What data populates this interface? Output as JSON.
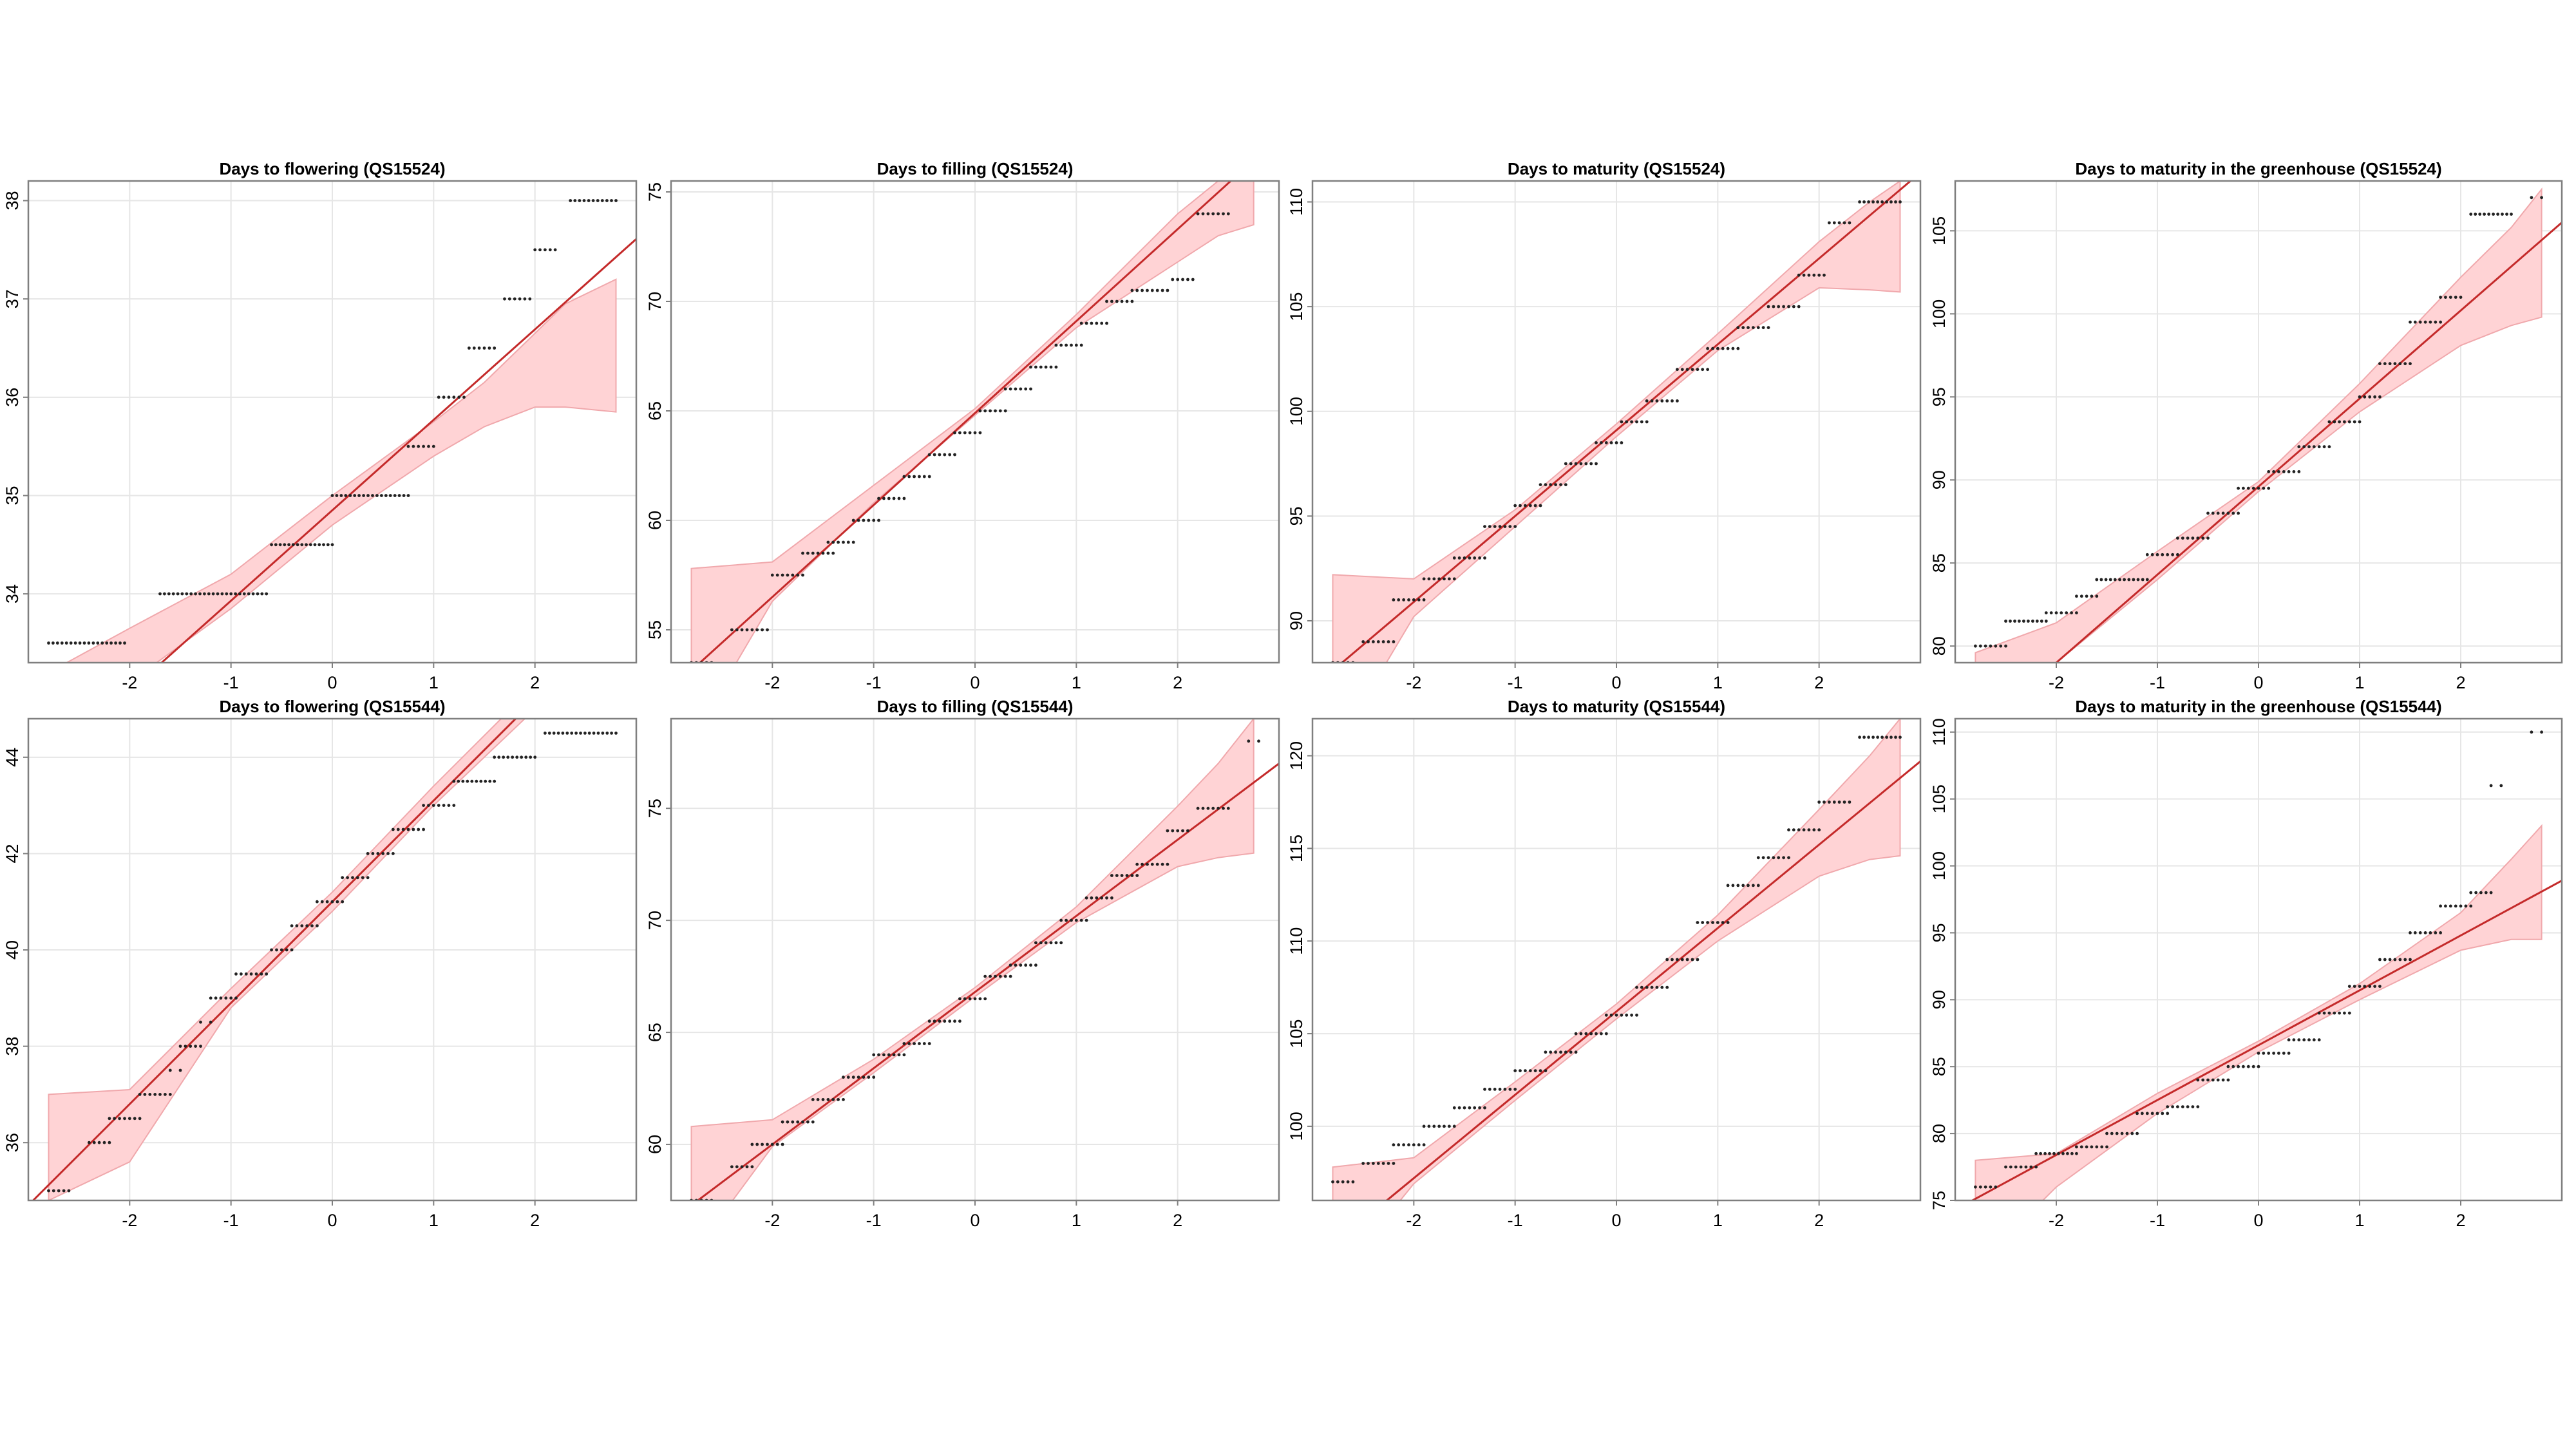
{
  "colors": {
    "band": "#ffd3d5",
    "band_edge": "#f0a8ac",
    "reference_line": "#c42a2a",
    "points": "#222222",
    "frame": "#7f7f7f",
    "grid": "#e6e6e6"
  },
  "chart_data": [
    {
      "type": "scatter",
      "title": "Days to flowering (QS15524)",
      "xlabel": "",
      "ylabel": "",
      "xlim": [
        -3,
        3
      ],
      "ylim": [
        33.3,
        38.2
      ],
      "xticks": [
        -2,
        -1,
        0,
        1,
        2
      ],
      "yticks": [
        34,
        35,
        36,
        37,
        38
      ],
      "grid": true,
      "reference_line": {
        "slope": 0.92,
        "intercept": 34.85
      },
      "steps": [
        [
          -2.8,
          -2.05,
          33.5
        ],
        [
          -1.7,
          -0.65,
          34
        ],
        [
          -0.6,
          0.0,
          34.5
        ],
        [
          0.0,
          0.75,
          35
        ],
        [
          0.75,
          1.0,
          35.5
        ],
        [
          1.05,
          1.3,
          36
        ],
        [
          1.35,
          1.6,
          36.5
        ],
        [
          1.7,
          1.95,
          37
        ],
        [
          2.0,
          2.2,
          37.5
        ],
        [
          2.35,
          2.8,
          38
        ]
      ],
      "band": {
        "x": [
          -2.8,
          -2.0,
          -1.0,
          0.0,
          1.0,
          1.5,
          2.0,
          2.3,
          2.8
        ],
        "lower": [
          32.3,
          33.1,
          33.85,
          34.7,
          35.4,
          35.7,
          35.9,
          35.9,
          35.85
        ],
        "upper": [
          33.2,
          33.65,
          34.2,
          35.0,
          35.75,
          36.15,
          36.65,
          36.95,
          37.2
        ]
      }
    },
    {
      "type": "scatter",
      "title": "Days to filling (QS15524)",
      "xlabel": "",
      "ylabel": "",
      "xlim": [
        -3,
        3
      ],
      "ylim": [
        53.5,
        75.5
      ],
      "xticks": [
        -2,
        -1,
        0,
        1,
        2
      ],
      "yticks": [
        55,
        60,
        65,
        70,
        75
      ],
      "grid": true,
      "reference_line": {
        "slope": 4.2,
        "intercept": 64.9
      },
      "steps": [
        [
          -2.8,
          -2.6,
          53.5
        ],
        [
          -2.4,
          -2.05,
          55
        ],
        [
          -2.0,
          -1.7,
          57.5
        ],
        [
          -1.7,
          -1.4,
          58.5
        ],
        [
          -1.45,
          -1.2,
          59
        ],
        [
          -1.2,
          -0.95,
          60
        ],
        [
          -0.95,
          -0.7,
          61
        ],
        [
          -0.7,
          -0.45,
          62
        ],
        [
          -0.45,
          -0.2,
          63
        ],
        [
          -0.2,
          0.05,
          64
        ],
        [
          0.05,
          0.3,
          65
        ],
        [
          0.3,
          0.55,
          66
        ],
        [
          0.55,
          0.8,
          67
        ],
        [
          0.8,
          1.05,
          68
        ],
        [
          1.05,
          1.3,
          69
        ],
        [
          1.3,
          1.55,
          70
        ],
        [
          1.55,
          1.9,
          70.5
        ],
        [
          1.95,
          2.15,
          71
        ],
        [
          2.2,
          2.5,
          74
        ]
      ],
      "band": {
        "x": [
          -2.8,
          -2.0,
          -1.0,
          0.0,
          1.0,
          2.0,
          2.4,
          2.75
        ],
        "lower": [
          50.0,
          56.3,
          60.8,
          64.8,
          68.8,
          71.8,
          73.0,
          73.5
        ],
        "upper": [
          57.8,
          58.1,
          61.6,
          65.1,
          69.4,
          74.0,
          75.5,
          76.0
        ]
      }
    },
    {
      "type": "scatter",
      "title": "Days to maturity (QS15524)",
      "xlabel": "",
      "ylabel": "",
      "xlim": [
        -3,
        3
      ],
      "ylim": [
        88,
        111
      ],
      "xticks": [
        -2,
        -1,
        0,
        1,
        2
      ],
      "yticks": [
        90,
        95,
        100,
        105,
        110
      ],
      "grid": true,
      "reference_line": {
        "slope": 4.1,
        "intercept": 99.1
      },
      "steps": [
        [
          -2.8,
          -2.6,
          88
        ],
        [
          -2.5,
          -2.2,
          89
        ],
        [
          -2.2,
          -1.9,
          91
        ],
        [
          -1.9,
          -1.6,
          92
        ],
        [
          -1.6,
          -1.3,
          93
        ],
        [
          -1.3,
          -1.0,
          94.5
        ],
        [
          -1.0,
          -0.75,
          95.5
        ],
        [
          -0.75,
          -0.5,
          96.5
        ],
        [
          -0.5,
          -0.2,
          97.5
        ],
        [
          -0.2,
          0.05,
          98.5
        ],
        [
          0.05,
          0.3,
          99.5
        ],
        [
          0.3,
          0.6,
          100.5
        ],
        [
          0.6,
          0.9,
          102
        ],
        [
          0.9,
          1.2,
          103
        ],
        [
          1.2,
          1.5,
          104
        ],
        [
          1.5,
          1.8,
          105
        ],
        [
          1.8,
          2.05,
          106.5
        ],
        [
          2.1,
          2.3,
          109
        ],
        [
          2.4,
          2.8,
          110
        ]
      ],
      "band": {
        "x": [
          -2.8,
          -2.0,
          -1.0,
          0.0,
          1.0,
          2.0,
          2.5,
          2.8
        ],
        "lower": [
          83.7,
          90.2,
          94.5,
          98.8,
          102.9,
          105.9,
          105.8,
          105.7
        ],
        "upper": [
          92.2,
          92.0,
          95.3,
          99.4,
          103.7,
          108.1,
          110.0,
          111.0
        ]
      }
    },
    {
      "type": "scatter",
      "title": "Days to maturity in the greenhouse (QS15524)",
      "xlabel": "",
      "ylabel": "",
      "xlim": [
        -3,
        3
      ],
      "ylim": [
        79,
        108
      ],
      "xticks": [
        -2,
        -1,
        0,
        1,
        2
      ],
      "yticks": [
        80,
        85,
        90,
        95,
        100,
        105
      ],
      "grid": true,
      "reference_line": {
        "slope": 5.3,
        "intercept": 89.6
      },
      "steps": [
        [
          -2.8,
          -2.5,
          80
        ],
        [
          -2.5,
          -2.1,
          81.5
        ],
        [
          -2.1,
          -1.8,
          82
        ],
        [
          -1.8,
          -1.6,
          83
        ],
        [
          -1.6,
          -1.1,
          84
        ],
        [
          -1.1,
          -0.8,
          85.5
        ],
        [
          -0.8,
          -0.5,
          86.5
        ],
        [
          -0.5,
          -0.2,
          88
        ],
        [
          -0.2,
          0.1,
          89.5
        ],
        [
          0.1,
          0.4,
          90.5
        ],
        [
          0.4,
          0.7,
          92
        ],
        [
          0.7,
          1.0,
          93.5
        ],
        [
          1.0,
          1.2,
          95
        ],
        [
          1.2,
          1.5,
          97
        ],
        [
          1.5,
          1.8,
          99.5
        ],
        [
          1.8,
          2.0,
          101
        ],
        [
          2.1,
          2.5,
          106
        ],
        [
          2.7,
          2.8,
          107
        ]
      ],
      "band": {
        "x": [
          -2.8,
          -2.0,
          -1.0,
          0.0,
          1.0,
          2.0,
          2.5,
          2.8
        ],
        "lower": [
          74.1,
          79.0,
          84.0,
          89.3,
          94.1,
          98.1,
          99.3,
          99.8
        ],
        "upper": [
          79.6,
          81.4,
          85.7,
          89.9,
          95.8,
          102.2,
          105.2,
          107.5
        ]
      }
    },
    {
      "type": "scatter",
      "title": "Days to flowering (QS15544)",
      "xlabel": "",
      "ylabel": "",
      "xlim": [
        -3,
        3
      ],
      "ylim": [
        34.8,
        44.8
      ],
      "xticks": [
        -2,
        -1,
        0,
        1,
        2
      ],
      "yticks": [
        36,
        38,
        40,
        42,
        44
      ],
      "grid": true,
      "reference_line": {
        "slope": 2.1,
        "intercept": 41.0
      },
      "steps": [
        [
          -2.8,
          -2.6,
          35
        ],
        [
          -2.4,
          -2.2,
          36
        ],
        [
          -2.2,
          -1.9,
          36.5
        ],
        [
          -1.9,
          -1.6,
          37
        ],
        [
          -1.6,
          -1.5,
          37.5
        ],
        [
          -1.5,
          -1.3,
          38
        ],
        [
          -1.3,
          -1.2,
          38.5
        ],
        [
          -1.2,
          -0.95,
          39
        ],
        [
          -0.95,
          -0.65,
          39.5
        ],
        [
          -0.6,
          -0.4,
          40
        ],
        [
          -0.4,
          -0.15,
          40.5
        ],
        [
          -0.15,
          0.1,
          41
        ],
        [
          0.1,
          0.35,
          41.5
        ],
        [
          0.35,
          0.6,
          42
        ],
        [
          0.6,
          0.9,
          42.5
        ],
        [
          0.9,
          1.2,
          43
        ],
        [
          1.2,
          1.6,
          43.5
        ],
        [
          1.6,
          2.0,
          44
        ],
        [
          2.1,
          2.8,
          44.5
        ]
      ],
      "band": {
        "x": [
          -2.8,
          -2.0,
          -1.0,
          0.0,
          1.0,
          2.0,
          2.5,
          2.8
        ],
        "lower": [
          34.8,
          35.6,
          38.8,
          40.8,
          43.0,
          45.0,
          46.0,
          46.5
        ],
        "upper": [
          37.0,
          37.1,
          39.2,
          41.2,
          43.4,
          45.5,
          46.5,
          47.0
        ]
      }
    },
    {
      "type": "scatter",
      "title": "Days to filling (QS15544)",
      "xlabel": "",
      "ylabel": "",
      "xlim": [
        -3,
        3
      ],
      "ylim": [
        57.5,
        79
      ],
      "xticks": [
        -2,
        -1,
        0,
        1,
        2
      ],
      "yticks": [
        60,
        65,
        70,
        75
      ],
      "grid": true,
      "reference_line": {
        "slope": 3.4,
        "intercept": 66.8
      },
      "steps": [
        [
          -2.8,
          -2.6,
          57.5
        ],
        [
          -2.4,
          -2.2,
          59
        ],
        [
          -2.2,
          -1.9,
          60
        ],
        [
          -1.9,
          -1.6,
          61
        ],
        [
          -1.6,
          -1.3,
          62
        ],
        [
          -1.3,
          -1.0,
          63
        ],
        [
          -1.0,
          -0.7,
          64
        ],
        [
          -0.7,
          -0.45,
          64.5
        ],
        [
          -0.45,
          -0.15,
          65.5
        ],
        [
          -0.15,
          0.1,
          66.5
        ],
        [
          0.1,
          0.35,
          67.5
        ],
        [
          0.35,
          0.6,
          68
        ],
        [
          0.6,
          0.85,
          69
        ],
        [
          0.85,
          1.1,
          70
        ],
        [
          1.1,
          1.35,
          71
        ],
        [
          1.35,
          1.6,
          72
        ],
        [
          1.6,
          1.9,
          72.5
        ],
        [
          1.9,
          2.1,
          74
        ],
        [
          2.2,
          2.5,
          75
        ],
        [
          2.7,
          2.8,
          78
        ]
      ],
      "band": {
        "x": [
          -2.8,
          -2.0,
          -1.0,
          0.0,
          1.0,
          2.0,
          2.4,
          2.75
        ],
        "lower": [
          55.0,
          59.9,
          63.2,
          66.6,
          69.9,
          72.4,
          72.8,
          73.0
        ],
        "upper": [
          60.8,
          61.1,
          63.8,
          67.0,
          70.6,
          75.1,
          77.0,
          79.0
        ]
      }
    },
    {
      "type": "scatter",
      "title": "Days to maturity (QS15544)",
      "xlabel": "",
      "ylabel": "",
      "xlim": [
        -3,
        3
      ],
      "ylim": [
        96,
        122
      ],
      "xticks": [
        -2,
        -1,
        0,
        1,
        2
      ],
      "yticks": [
        100,
        105,
        110,
        115,
        120
      ],
      "grid": true,
      "reference_line": {
        "slope": 4.5,
        "intercept": 106.2
      },
      "steps": [
        [
          -2.8,
          -2.6,
          97
        ],
        [
          -2.5,
          -2.2,
          98
        ],
        [
          -2.2,
          -1.9,
          99
        ],
        [
          -1.9,
          -1.6,
          100
        ],
        [
          -1.6,
          -1.3,
          101
        ],
        [
          -1.3,
          -1.0,
          102
        ],
        [
          -1.0,
          -0.7,
          103
        ],
        [
          -0.7,
          -0.4,
          104
        ],
        [
          -0.4,
          -0.1,
          105
        ],
        [
          -0.1,
          0.2,
          106
        ],
        [
          0.2,
          0.5,
          107.5
        ],
        [
          0.5,
          0.8,
          109
        ],
        [
          0.8,
          1.1,
          111
        ],
        [
          1.1,
          1.4,
          113
        ],
        [
          1.4,
          1.7,
          114.5
        ],
        [
          1.7,
          2.0,
          116
        ],
        [
          2.0,
          2.3,
          117.5
        ],
        [
          2.4,
          2.8,
          121
        ]
      ],
      "band": {
        "x": [
          -2.8,
          -2.0,
          -1.0,
          0.0,
          1.0,
          2.0,
          2.5,
          2.8
        ],
        "lower": [
          91.5,
          96.9,
          101.4,
          105.8,
          110.0,
          113.5,
          114.4,
          114.6
        ],
        "upper": [
          97.8,
          98.3,
          102.4,
          106.6,
          111.4,
          117.1,
          120.0,
          122.0
        ]
      }
    },
    {
      "type": "scatter",
      "title": "Days to maturity in the greenhouse (QS15544)",
      "xlabel": "",
      "ylabel": "",
      "xlim": [
        -3,
        3
      ],
      "ylim": [
        75,
        111
      ],
      "xticks": [
        -2,
        -1,
        0,
        1,
        2
      ],
      "yticks": [
        75,
        80,
        85,
        90,
        95,
        100,
        105,
        110
      ],
      "grid": true,
      "reference_line": {
        "slope": 4.1,
        "intercept": 86.6
      },
      "steps": [
        [
          -2.8,
          -2.6,
          76
        ],
        [
          -2.5,
          -2.2,
          77.5
        ],
        [
          -2.2,
          -1.8,
          78.5
        ],
        [
          -1.8,
          -1.5,
          79
        ],
        [
          -1.5,
          -1.2,
          80
        ],
        [
          -1.2,
          -0.9,
          81.5
        ],
        [
          -0.9,
          -0.6,
          82
        ],
        [
          -0.6,
          -0.3,
          84
        ],
        [
          -0.3,
          0.0,
          85
        ],
        [
          0.0,
          0.3,
          86
        ],
        [
          0.3,
          0.6,
          87
        ],
        [
          0.6,
          0.9,
          89
        ],
        [
          0.9,
          1.2,
          91
        ],
        [
          1.2,
          1.5,
          93
        ],
        [
          1.5,
          1.8,
          95
        ],
        [
          1.8,
          2.1,
          97
        ],
        [
          2.1,
          2.3,
          98
        ],
        [
          2.3,
          2.4,
          106
        ],
        [
          2.7,
          2.8,
          110
        ]
      ],
      "band": {
        "x": [
          -2.8,
          -2.0,
          -1.0,
          0.0,
          1.0,
          2.0,
          2.5,
          2.8
        ],
        "lower": [
          70.0,
          76.0,
          81.5,
          86.1,
          90.0,
          93.7,
          94.5,
          94.5
        ],
        "upper": [
          78.0,
          78.5,
          83.0,
          86.9,
          91.2,
          96.5,
          100.5,
          103.0
        ]
      }
    }
  ]
}
